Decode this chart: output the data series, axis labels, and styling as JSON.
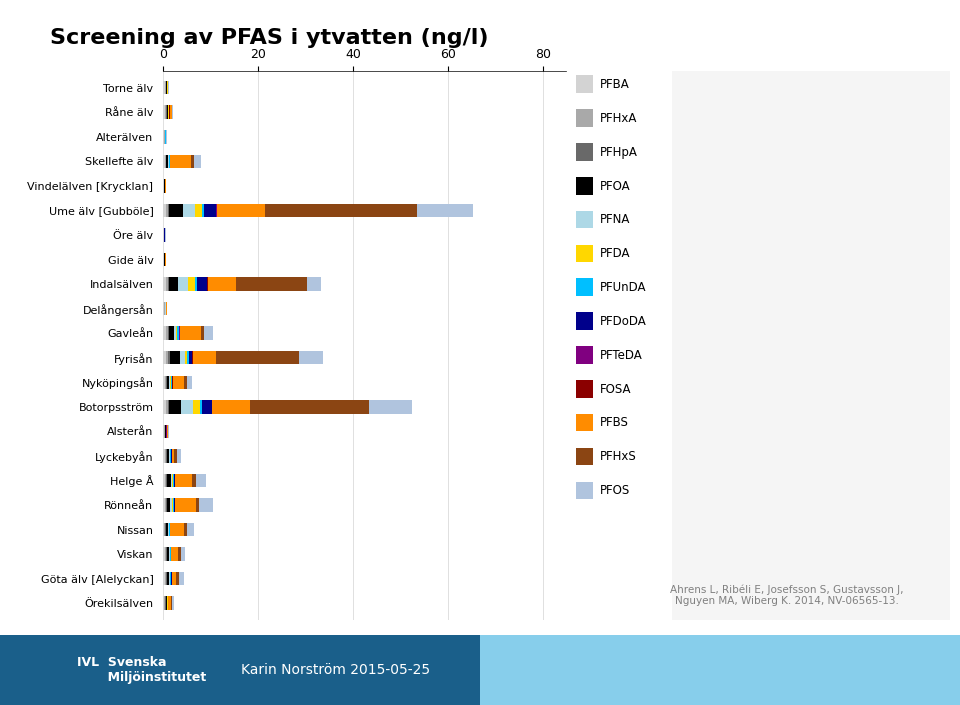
{
  "title": "Screening av PFAS i ytvatten (ng/l)",
  "rivers": [
    "Torne älv",
    "Råne älv",
    "Alterälven",
    "Skellefte älv",
    "Vindelälven [Krycklan]",
    "Ume älv [Gubböle]",
    "Öre älv",
    "Gide älv",
    "Indalsälven",
    "Delångersån",
    "Gavleån",
    "Fyrisån",
    "Nyköpingsån",
    "Botorpsström",
    "Alsterån",
    "Lyckebyån",
    "Helge Å",
    "Rönneån",
    "Nissan",
    "Viskan",
    "Göta älv [Alelyckan]",
    "Örekilsälven"
  ],
  "compounds": [
    "PFBA",
    "PFHxA",
    "PFHpA",
    "PFOA",
    "PFNA",
    "PFDA",
    "PFUnDA",
    "PFDoDA",
    "PFTeDA",
    "FOSA",
    "PFBS",
    "PFHxS",
    "PFOS"
  ],
  "colors": {
    "PFBA": "#d3d3d3",
    "PFHxA": "#a9a9a9",
    "PFHpA": "#696969",
    "PFOA": "#000000",
    "PFNA": "#add8e6",
    "PFDA": "#ffd700",
    "PFUnDA": "#00bfff",
    "PFDoDA": "#00008b",
    "PFTeDA": "#800080",
    "FOSA": "#8b0000",
    "PFBS": "#ff8c00",
    "PFHxS": "#8b4513",
    "PFOS": "#b0c4de"
  },
  "data": {
    "Torne älv": [
      0.3,
      0.2,
      0.05,
      0.3,
      0.05,
      0.02,
      0.05,
      0.02,
      0.01,
      0.01,
      0.05,
      0.05,
      0.1
    ],
    "Råne älv": [
      0.3,
      0.3,
      0.1,
      0.3,
      0.1,
      0.05,
      0.1,
      0.05,
      0.02,
      0.01,
      0.5,
      0.05,
      0.2
    ],
    "Alterälven": [
      0.2,
      0.1,
      0.05,
      0.1,
      0.02,
      0.01,
      0.02,
      0.01,
      0.01,
      0.01,
      0.1,
      0.05,
      0.1
    ],
    "Skellefte älv": [
      0.3,
      0.2,
      0.1,
      0.5,
      0.1,
      0.05,
      0.1,
      0.02,
      0.01,
      0.01,
      4.5,
      0.5,
      1.5
    ],
    "Vindelälven [Krycklan]": [
      0.1,
      0.1,
      0.02,
      0.1,
      0.02,
      0.01,
      0.02,
      0.01,
      0.01,
      0.01,
      0.1,
      0.05,
      0.1
    ],
    "Ume älv [Gubböle]": [
      0.5,
      0.5,
      0.2,
      3.0,
      2.5,
      1.5,
      0.5,
      2.5,
      0.1,
      0.1,
      10.0,
      32.0,
      12.0
    ],
    "Öre älv": [
      0.1,
      0.05,
      0.02,
      0.05,
      0.02,
      0.01,
      0.02,
      0.01,
      0.01,
      0.01,
      0.05,
      0.05,
      0.1
    ],
    "Gide älv": [
      0.1,
      0.1,
      0.02,
      0.1,
      0.02,
      0.01,
      0.02,
      0.01,
      0.01,
      0.01,
      0.1,
      0.05,
      0.1
    ],
    "Indalsälven": [
      0.5,
      0.5,
      0.2,
      2.0,
      2.0,
      1.5,
      0.5,
      2.0,
      0.1,
      0.05,
      6.0,
      15.0,
      3.0
    ],
    "Delångersån": [
      0.2,
      0.1,
      0.05,
      0.1,
      0.05,
      0.02,
      0.05,
      0.02,
      0.01,
      0.01,
      0.1,
      0.05,
      0.1
    ],
    "Gavleån": [
      0.5,
      0.5,
      0.2,
      1.0,
      0.5,
      0.3,
      0.3,
      0.1,
      0.05,
      0.05,
      4.5,
      0.5,
      2.0
    ],
    "Fyrisån": [
      0.5,
      0.5,
      0.5,
      2.0,
      1.0,
      0.5,
      0.5,
      0.5,
      0.1,
      0.1,
      5.0,
      17.5,
      5.0
    ],
    "Nyköpingsån": [
      0.3,
      0.3,
      0.2,
      0.5,
      0.2,
      0.1,
      0.2,
      0.1,
      0.05,
      0.02,
      2.5,
      0.5,
      1.0
    ],
    "Botorpsström": [
      0.5,
      0.5,
      0.2,
      2.5,
      2.5,
      1.5,
      0.5,
      2.0,
      0.1,
      0.05,
      8.0,
      25.0,
      9.0
    ],
    "Alsterån": [
      0.2,
      0.1,
      0.05,
      0.2,
      0.05,
      0.02,
      0.05,
      0.02,
      0.01,
      0.01,
      0.2,
      0.1,
      0.2
    ],
    "Lyckebyån": [
      0.3,
      0.3,
      0.1,
      0.5,
      0.2,
      0.1,
      0.2,
      0.1,
      0.02,
      0.02,
      0.5,
      0.5,
      1.0
    ],
    "Helge Å": [
      0.3,
      0.3,
      0.2,
      0.8,
      0.3,
      0.2,
      0.2,
      0.1,
      0.05,
      0.02,
      3.5,
      1.0,
      2.0
    ],
    "Rönneån": [
      0.3,
      0.3,
      0.1,
      0.8,
      0.3,
      0.2,
      0.2,
      0.2,
      0.05,
      0.02,
      4.5,
      0.5,
      3.0
    ],
    "Nissan": [
      0.2,
      0.2,
      0.1,
      0.5,
      0.2,
      0.1,
      0.1,
      0.05,
      0.02,
      0.02,
      3.0,
      0.5,
      1.5
    ],
    "Viskan": [
      0.3,
      0.3,
      0.1,
      0.5,
      0.2,
      0.1,
      0.1,
      0.05,
      0.02,
      0.02,
      1.5,
      0.5,
      1.0
    ],
    "Göta älv [Alelyckan]": [
      0.3,
      0.3,
      0.1,
      0.5,
      0.2,
      0.1,
      0.2,
      0.05,
      0.02,
      0.02,
      1.0,
      0.5,
      1.0
    ],
    "Örekilsälven": [
      0.2,
      0.2,
      0.1,
      0.3,
      0.1,
      0.05,
      0.05,
      0.02,
      0.01,
      0.01,
      0.5,
      0.3,
      0.5
    ]
  },
  "xlim": [
    0,
    85
  ],
  "xticks": [
    0,
    20,
    40,
    60,
    80
  ],
  "background_color": "#ffffff",
  "footer_color": "#2176ae",
  "footer_right_color": "#87ceeb"
}
